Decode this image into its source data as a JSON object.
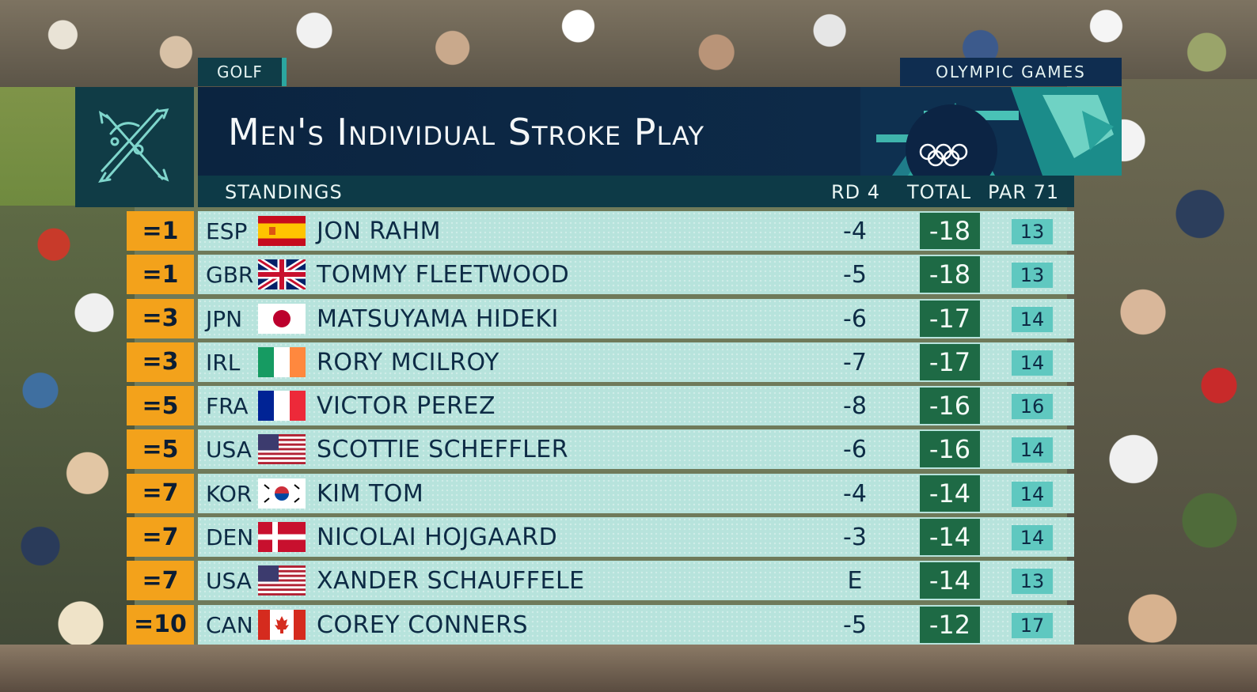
{
  "header": {
    "sport": "GOLF",
    "games": "OLYMPIC GAMES",
    "title": "Men's Individual Stroke Play",
    "subtitle": "STANDINGS",
    "col_round": "RD 4",
    "col_total": "TOTAL",
    "col_par": "PAR 71"
  },
  "colors": {
    "position_bg": "#f3a21b",
    "row_bg": "#b7e3dc",
    "total_bg": "#1e6a45",
    "par_bg": "#5fc8c0",
    "title_bg": "#0b2440"
  },
  "standings": [
    {
      "pos": "=1",
      "noc": "ESP",
      "flag": "spain-flag",
      "name": "JON RAHM",
      "rd": "-4",
      "total": "-18",
      "par": "13"
    },
    {
      "pos": "=1",
      "noc": "GBR",
      "flag": "uk-flag",
      "name": "TOMMY FLEETWOOD",
      "rd": "-5",
      "total": "-18",
      "par": "13"
    },
    {
      "pos": "=3",
      "noc": "JPN",
      "flag": "japan-flag",
      "name": "MATSUYAMA HIDEKI",
      "rd": "-6",
      "total": "-17",
      "par": "14"
    },
    {
      "pos": "=3",
      "noc": "IRL",
      "flag": "ireland-flag",
      "name": "RORY MCILROY",
      "rd": "-7",
      "total": "-17",
      "par": "14"
    },
    {
      "pos": "=5",
      "noc": "FRA",
      "flag": "france-flag",
      "name": "VICTOR PEREZ",
      "rd": "-8",
      "total": "-16",
      "par": "16"
    },
    {
      "pos": "=5",
      "noc": "USA",
      "flag": "usa-flag",
      "name": "SCOTTIE SCHEFFLER",
      "rd": "-6",
      "total": "-16",
      "par": "14"
    },
    {
      "pos": "=7",
      "noc": "KOR",
      "flag": "korea-flag",
      "name": "KIM TOM",
      "rd": "-4",
      "total": "-14",
      "par": "14"
    },
    {
      "pos": "=7",
      "noc": "DEN",
      "flag": "denmark-flag",
      "name": "NICOLAI HOJGAARD",
      "rd": "-3",
      "total": "-14",
      "par": "14"
    },
    {
      "pos": "=7",
      "noc": "USA",
      "flag": "usa-flag",
      "name": "XANDER SCHAUFFELE",
      "rd": "E",
      "total": "-14",
      "par": "13"
    },
    {
      "pos": "=10",
      "noc": "CAN",
      "flag": "canada-flag",
      "name": "COREY CONNERS",
      "rd": "-5",
      "total": "-12",
      "par": "17"
    }
  ]
}
